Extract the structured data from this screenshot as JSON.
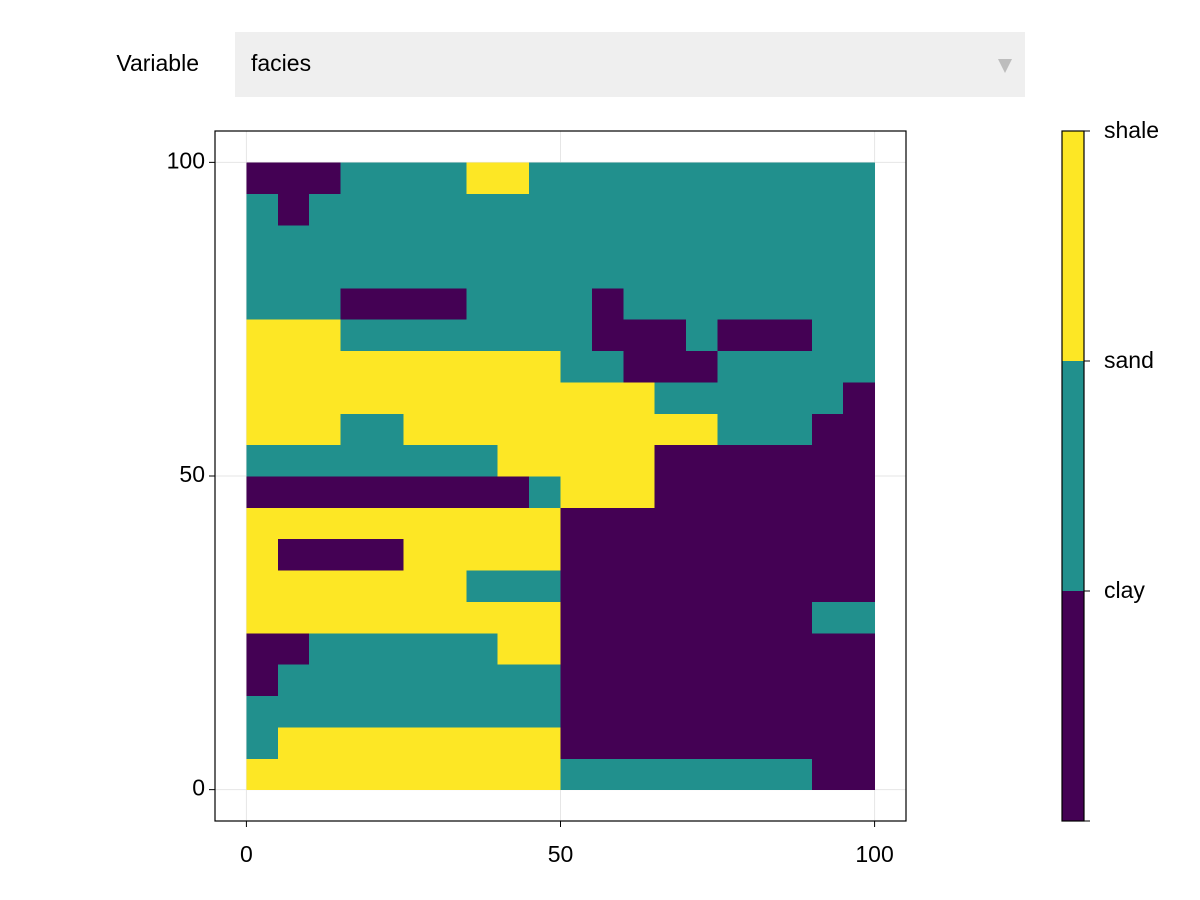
{
  "controls": {
    "label": "Variable",
    "selected": "facies"
  },
  "chart_data": {
    "type": "heatmap",
    "xlim": [
      -5,
      105
    ],
    "ylim": [
      -5,
      105
    ],
    "xticks": [
      0,
      50,
      100
    ],
    "yticks": [
      0,
      50,
      100
    ],
    "grid": true,
    "xbins": [
      0,
      5,
      10,
      15,
      20,
      25,
      30,
      35,
      40,
      45,
      50,
      55,
      60,
      65,
      70,
      75,
      80,
      85,
      90,
      95,
      100
    ],
    "ybins": [
      0,
      5,
      10,
      15,
      20,
      25,
      30,
      35,
      40,
      45,
      50,
      55,
      60,
      65,
      70,
      75,
      80,
      85,
      90,
      95,
      100
    ],
    "values": [
      [
        3,
        3,
        3,
        3,
        3,
        3,
        3,
        3,
        3,
        3,
        2,
        2,
        2,
        2,
        2,
        2,
        2,
        2,
        1,
        1
      ],
      [
        2,
        3,
        3,
        3,
        3,
        3,
        3,
        3,
        3,
        3,
        1,
        1,
        1,
        1,
        1,
        1,
        1,
        1,
        1,
        1
      ],
      [
        2,
        2,
        2,
        2,
        2,
        2,
        2,
        2,
        2,
        2,
        1,
        1,
        1,
        1,
        1,
        1,
        1,
        1,
        1,
        1
      ],
      [
        1,
        2,
        2,
        2,
        2,
        2,
        2,
        2,
        2,
        2,
        1,
        1,
        1,
        1,
        1,
        1,
        1,
        1,
        1,
        1
      ],
      [
        1,
        1,
        2,
        2,
        2,
        2,
        2,
        2,
        3,
        3,
        1,
        1,
        1,
        1,
        1,
        1,
        1,
        1,
        1,
        1
      ],
      [
        3,
        3,
        3,
        3,
        3,
        3,
        3,
        3,
        3,
        3,
        1,
        1,
        1,
        1,
        1,
        1,
        1,
        1,
        2,
        2
      ],
      [
        3,
        3,
        3,
        3,
        3,
        3,
        3,
        2,
        2,
        2,
        1,
        1,
        1,
        1,
        1,
        1,
        1,
        1,
        1,
        1
      ],
      [
        3,
        1,
        1,
        1,
        1,
        3,
        3,
        3,
        3,
        3,
        1,
        1,
        1,
        1,
        1,
        1,
        1,
        1,
        1,
        1
      ],
      [
        3,
        3,
        3,
        3,
        3,
        3,
        3,
        3,
        3,
        3,
        1,
        1,
        1,
        1,
        1,
        1,
        1,
        1,
        1,
        1
      ],
      [
        1,
        1,
        1,
        1,
        1,
        1,
        1,
        1,
        1,
        2,
        3,
        3,
        3,
        1,
        1,
        1,
        1,
        1,
        1,
        1
      ],
      [
        2,
        2,
        2,
        2,
        2,
        2,
        2,
        2,
        3,
        3,
        3,
        3,
        3,
        1,
        1,
        1,
        1,
        1,
        1,
        1
      ],
      [
        3,
        3,
        3,
        2,
        2,
        3,
        3,
        3,
        3,
        3,
        3,
        3,
        3,
        3,
        3,
        2,
        2,
        2,
        1,
        1
      ],
      [
        3,
        3,
        3,
        3,
        3,
        3,
        3,
        3,
        3,
        3,
        3,
        3,
        3,
        2,
        2,
        2,
        2,
        2,
        2,
        1
      ],
      [
        3,
        3,
        3,
        3,
        3,
        3,
        3,
        3,
        3,
        3,
        2,
        2,
        1,
        1,
        1,
        2,
        2,
        2,
        2,
        2
      ],
      [
        3,
        3,
        3,
        2,
        2,
        2,
        2,
        2,
        2,
        2,
        2,
        1,
        1,
        1,
        2,
        1,
        1,
        1,
        2,
        2
      ],
      [
        2,
        2,
        2,
        1,
        1,
        1,
        1,
        2,
        2,
        2,
        2,
        1,
        2,
        2,
        2,
        2,
        2,
        2,
        2,
        2
      ],
      [
        2,
        2,
        2,
        2,
        2,
        2,
        2,
        2,
        2,
        2,
        2,
        2,
        2,
        2,
        2,
        2,
        2,
        2,
        2,
        2
      ],
      [
        2,
        2,
        2,
        2,
        2,
        2,
        2,
        2,
        2,
        2,
        2,
        2,
        2,
        2,
        2,
        2,
        2,
        2,
        2,
        2
      ],
      [
        2,
        1,
        2,
        2,
        2,
        2,
        2,
        2,
        2,
        2,
        2,
        2,
        2,
        2,
        2,
        2,
        2,
        2,
        2,
        2
      ],
      [
        1,
        1,
        1,
        2,
        2,
        2,
        2,
        3,
        3,
        2,
        2,
        2,
        2,
        2,
        2,
        2,
        2,
        2,
        2,
        2
      ]
    ],
    "colorbar": {
      "colors": [
        "#440154",
        "#21908d",
        "#fde725"
      ],
      "limits": [
        0,
        3
      ],
      "ticks": [
        {
          "value": 1,
          "label": "clay"
        },
        {
          "value": 2,
          "label": "sand"
        },
        {
          "value": 3,
          "label": "shale"
        }
      ]
    }
  }
}
